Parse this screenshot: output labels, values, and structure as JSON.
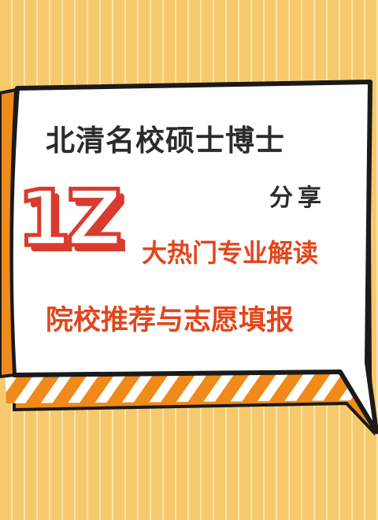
{
  "poster": {
    "title": "北清名校硕士博士",
    "share": "分享",
    "badge_number": "1Z",
    "hot_majors": "大热门专业解读",
    "recommend": "院校推荐与志愿填报"
  },
  "colors": {
    "background": "#f7c96d",
    "bubble_fill": "#ffffff",
    "bubble_outline": "#1a1a1a",
    "bubble_shadow": "#f08a1a",
    "badge_red": "#d93b2e",
    "accent_orange": "#e2451c",
    "title_dark": "#2b2b2b"
  }
}
